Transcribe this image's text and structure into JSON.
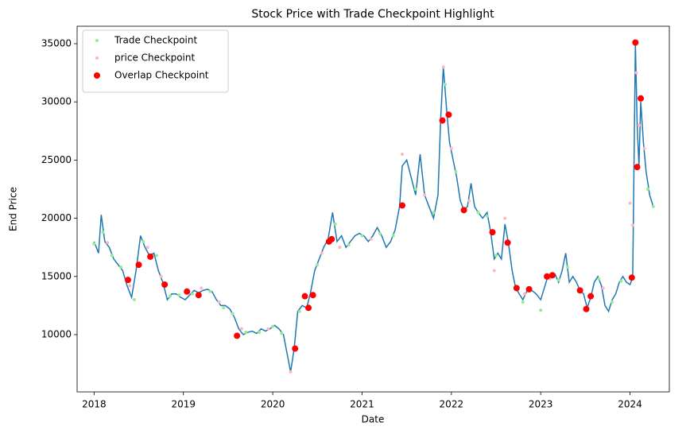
{
  "chart_data": {
    "type": "line",
    "title": "Stock Price with Trade Checkpoint Highlight",
    "x_label": "Date",
    "y_label": "End Price",
    "xlim": [
      2017.81,
      2024.44
    ],
    "ylim": [
      5080,
      36500
    ],
    "xticks": [
      2018,
      2019,
      2020,
      2021,
      2022,
      2023,
      2024
    ],
    "yticks": [
      10000,
      15000,
      20000,
      25000,
      30000,
      35000
    ],
    "grid": false,
    "legend": "upper left",
    "series": [
      {
        "type": "line",
        "color": "#1f77b4",
        "x": [
          2018.0,
          2018.05,
          2018.08,
          2018.12,
          2018.17,
          2018.22,
          2018.27,
          2018.32,
          2018.37,
          2018.42,
          2018.47,
          2018.52,
          2018.57,
          2018.62,
          2018.67,
          2018.72,
          2018.77,
          2018.82,
          2018.87,
          2018.92,
          2018.97,
          2019.02,
          2019.07,
          2019.12,
          2019.17,
          2019.22,
          2019.27,
          2019.32,
          2019.37,
          2019.42,
          2019.47,
          2019.52,
          2019.57,
          2019.62,
          2019.67,
          2019.72,
          2019.77,
          2019.82,
          2019.87,
          2019.92,
          2019.97,
          2020.02,
          2020.07,
          2020.12,
          2020.17,
          2020.2,
          2020.24,
          2020.28,
          2020.33,
          2020.38,
          2020.42,
          2020.47,
          2020.52,
          2020.57,
          2020.62,
          2020.67,
          2020.72,
          2020.77,
          2020.82,
          2020.87,
          2020.92,
          2020.97,
          2021.02,
          2021.07,
          2021.12,
          2021.17,
          2021.22,
          2021.27,
          2021.32,
          2021.37,
          2021.42,
          2021.45,
          2021.5,
          2021.55,
          2021.6,
          2021.65,
          2021.7,
          2021.75,
          2021.8,
          2021.85,
          2021.88,
          2021.91,
          2021.95,
          2021.98,
          2022.02,
          2022.06,
          2022.1,
          2022.14,
          2022.18,
          2022.22,
          2022.26,
          2022.3,
          2022.35,
          2022.4,
          2022.44,
          2022.48,
          2022.52,
          2022.56,
          2022.6,
          2022.64,
          2022.68,
          2022.72,
          2022.76,
          2022.8,
          2022.85,
          2022.9,
          2022.95,
          2023.0,
          2023.04,
          2023.08,
          2023.12,
          2023.16,
          2023.2,
          2023.24,
          2023.28,
          2023.32,
          2023.36,
          2023.4,
          2023.44,
          2023.48,
          2023.52,
          2023.56,
          2023.6,
          2023.64,
          2023.68,
          2023.72,
          2023.76,
          2023.8,
          2023.84,
          2023.88,
          2023.92,
          2023.96,
          2024.0,
          2024.03,
          2024.06,
          2024.08,
          2024.1,
          2024.12,
          2024.15,
          2024.18,
          2024.22,
          2024.26
        ],
        "values": [
          18000,
          17000,
          20300,
          18000,
          17500,
          16500,
          16000,
          15500,
          14200,
          13200,
          15500,
          18500,
          17500,
          16800,
          17000,
          15500,
          14500,
          13000,
          13500,
          13500,
          13200,
          13000,
          13400,
          13800,
          13600,
          13800,
          13900,
          13700,
          13000,
          12500,
          12500,
          12200,
          11500,
          10500,
          10000,
          10200,
          10300,
          10100,
          10500,
          10300,
          10500,
          10800,
          10500,
          10000,
          8000,
          6800,
          8800,
          12000,
          12500,
          12300,
          13500,
          15500,
          16500,
          17500,
          18200,
          20500,
          18000,
          18500,
          17500,
          18000,
          18500,
          18700,
          18500,
          18000,
          18500,
          19200,
          18500,
          17500,
          18000,
          19000,
          21000,
          24500,
          25000,
          23500,
          22000,
          25500,
          22000,
          21000,
          20000,
          22000,
          28500,
          33000,
          29000,
          26500,
          25000,
          23500,
          21500,
          20700,
          21000,
          23000,
          21000,
          20500,
          20000,
          20500,
          18800,
          16500,
          17000,
          16500,
          19500,
          17800,
          15500,
          14000,
          13500,
          13000,
          13800,
          13800,
          13500,
          13000,
          14000,
          15000,
          15000,
          15200,
          14500,
          15500,
          17000,
          14500,
          15000,
          14500,
          13800,
          13500,
          12300,
          13200,
          14500,
          15000,
          14200,
          12500,
          12000,
          13000,
          13500,
          14500,
          15000,
          14500,
          14300,
          14900,
          35000,
          28000,
          24500,
          30000,
          26500,
          24000,
          22000,
          21000
        ]
      },
      {
        "type": "scatter",
        "name": "Trade Checkpoint",
        "color": "#90ee90",
        "size": 2,
        "x": [
          2018.0,
          2018.1,
          2018.2,
          2018.3,
          2018.45,
          2018.55,
          2018.7,
          2018.85,
          2018.95,
          2019.1,
          2019.3,
          2019.45,
          2019.55,
          2019.7,
          2019.85,
          2020.0,
          2020.1,
          2020.3,
          2020.5,
          2020.7,
          2020.85,
          2021.0,
          2021.2,
          2021.35,
          2021.6,
          2021.8,
          2021.93,
          2022.05,
          2022.3,
          2022.4,
          2022.5,
          2022.8,
          2023.0,
          2023.2,
          2023.3,
          2023.65,
          2023.8,
          2023.9,
          2024.2,
          2024.26
        ],
        "values": [
          17800,
          18800,
          16800,
          15800,
          13000,
          18000,
          16800,
          13300,
          13400,
          13500,
          13700,
          12300,
          11800,
          10200,
          10200,
          10700,
          10100,
          12000,
          16000,
          19500,
          17700,
          18500,
          18700,
          18500,
          22500,
          20500,
          31500,
          24000,
          20500,
          20200,
          16800,
          12800,
          12100,
          14700,
          15800,
          14800,
          12800,
          14600,
          22500,
          21000
        ]
      },
      {
        "type": "scatter",
        "name": "price Checkpoint",
        "color": "#ffb6c1",
        "size": 2,
        "x": [
          2018.15,
          2018.4,
          2018.6,
          2018.75,
          2019.2,
          2019.4,
          2019.65,
          2019.95,
          2020.2,
          2020.55,
          2020.75,
          2021.1,
          2021.45,
          2021.7,
          2021.91,
          2022.0,
          2022.2,
          2022.48,
          2022.6,
          2022.82,
          2023.1,
          2023.45,
          2023.7,
          2024.0,
          2024.03,
          2024.07,
          2024.1,
          2024.16
        ],
        "values": [
          17900,
          14200,
          17500,
          15000,
          14000,
          12800,
          10500,
          10500,
          6800,
          17000,
          17500,
          18200,
          25500,
          22000,
          33000,
          26000,
          21500,
          15500,
          20000,
          13500,
          14800,
          13700,
          14000,
          21300,
          19400,
          32500,
          28000,
          26000
        ]
      },
      {
        "type": "scatter",
        "name": "Overlap Checkpoint",
        "color": "#ff0000",
        "size": 4,
        "x": [
          2018.38,
          2018.5,
          2018.63,
          2018.79,
          2019.04,
          2019.17,
          2019.6,
          2020.25,
          2020.36,
          2020.4,
          2020.45,
          2020.63,
          2020.66,
          2021.45,
          2021.9,
          2021.97,
          2022.14,
          2022.46,
          2022.63,
          2022.73,
          2022.87,
          2023.07,
          2023.13,
          2023.44,
          2023.51,
          2023.56,
          2024.02,
          2024.06,
          2024.08,
          2024.12
        ],
        "values": [
          14700,
          16000,
          16700,
          14300,
          13700,
          13400,
          9900,
          8800,
          13300,
          12300,
          13400,
          18000,
          18200,
          21100,
          28400,
          28900,
          20700,
          18800,
          17900,
          14000,
          13900,
          15000,
          15100,
          13800,
          12200,
          13300,
          14900,
          35100,
          24400,
          30300
        ]
      }
    ]
  }
}
